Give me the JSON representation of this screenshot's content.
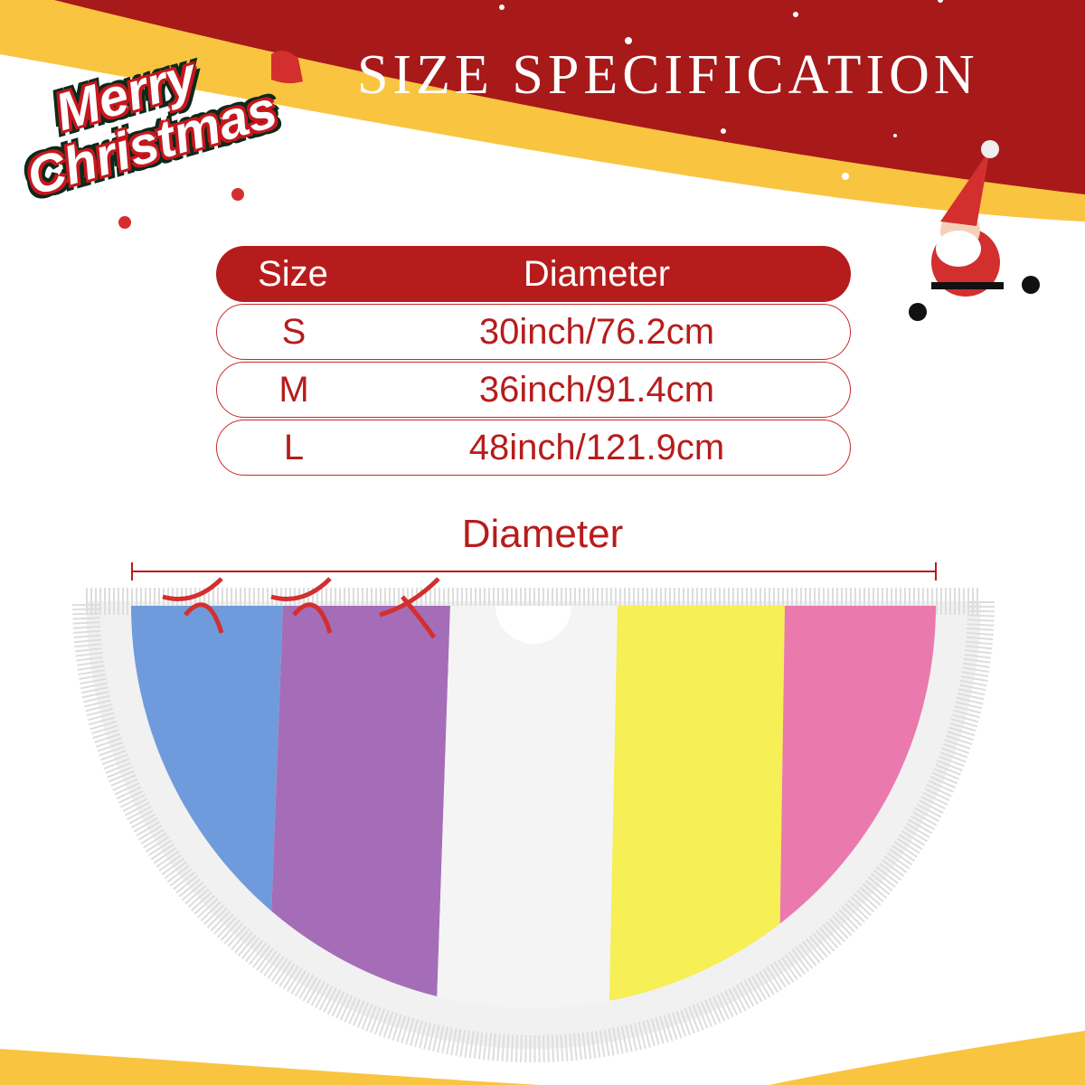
{
  "header": {
    "title": "SIZE SPECIFICATION",
    "logo_text": [
      "Merry",
      "Christmas"
    ]
  },
  "size_table": {
    "columns": [
      "Size",
      "Diameter"
    ],
    "rows": [
      {
        "size": "S",
        "diameter": "30inch/76.2cm"
      },
      {
        "size": "M",
        "diameter": "36inch/91.4cm"
      },
      {
        "size": "L",
        "diameter": "48inch/121.9cm"
      }
    ]
  },
  "diagram": {
    "dimension_label": "Diameter"
  },
  "colors": {
    "red": "#b71c1c",
    "gold": "#f9c440",
    "stripes": [
      "#6f9bdc",
      "#a56db8",
      "#f4f4f4",
      "#f6ef55",
      "#ea79ad"
    ]
  }
}
